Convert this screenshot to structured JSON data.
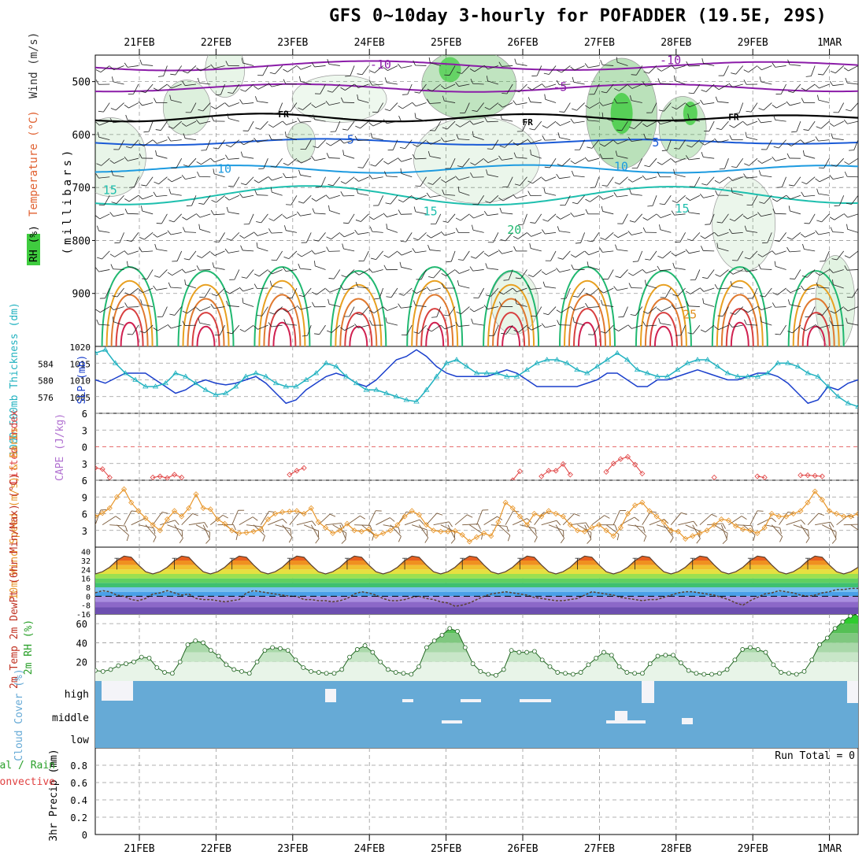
{
  "title": "GFS 0~10day 3-hourly for POFADDER (19.5E, 29S)",
  "dates": [
    "21FEB",
    "22FEB",
    "23FEB",
    "24FEB",
    "25FEB",
    "26FEB",
    "27FEB",
    "28FEB",
    "29FEB",
    "1MAR"
  ],
  "colors": {
    "cloud_blue": "#66aad6",
    "rh_green": "#3fcc3f",
    "slp_blue": "#1a3fcc",
    "thickness_cyan": "#22b2c0",
    "wind_orange": "#e8962a",
    "barb_brown": "#7a5a3a",
    "temp_magenta": "#8b1ca8",
    "lifted_red": "#e04040",
    "cape_violet": "#b070d0"
  },
  "chart_data": [
    {
      "type": "contour",
      "name": "upper-air",
      "ylabel_parts": [
        "RH (%)",
        "Temperature (°C)",
        "Wind (m/s)"
      ],
      "ylabel_units": "(millibars)",
      "yticks": [
        500,
        600,
        700,
        800,
        900
      ],
      "ylim": [
        1000,
        450
      ],
      "isotherm_labels": [
        {
          "text": "-10",
          "temp": -10,
          "x": 0.36,
          "p": 468
        },
        {
          "text": "-5",
          "temp": -5,
          "x": 0.6,
          "p": 510
        },
        {
          "text": "-10",
          "temp": -10,
          "x": 0.74,
          "p": 460
        },
        {
          "text": "FR",
          "temp": 0,
          "x": 0.24,
          "p": 560
        },
        {
          "text": "FR",
          "temp": 0,
          "x": 0.56,
          "p": 575
        },
        {
          "text": "FR",
          "temp": 0,
          "x": 0.83,
          "p": 565
        },
        {
          "text": "5",
          "temp": 5,
          "x": 0.33,
          "p": 610
        },
        {
          "text": "5",
          "temp": 5,
          "x": 0.73,
          "p": 615
        },
        {
          "text": "10",
          "temp": 10,
          "x": 0.16,
          "p": 665
        },
        {
          "text": "10",
          "temp": 10,
          "x": 0.68,
          "p": 660
        },
        {
          "text": "15",
          "temp": 15,
          "x": 0.01,
          "p": 705
        },
        {
          "text": "15",
          "temp": 15,
          "x": 0.43,
          "p": 745
        },
        {
          "text": "15",
          "temp": 15,
          "x": 0.76,
          "p": 740
        },
        {
          "text": "20",
          "temp": 20,
          "x": 0.54,
          "p": 780
        },
        {
          "text": "25",
          "temp": 25,
          "x": 0.77,
          "p": 940
        }
      ]
    },
    {
      "type": "line",
      "name": "slp-thickness",
      "ylabel_left": "1000-500mb Thickness (dm)",
      "ylabel_right": "SLP (mb)",
      "yticks_left": [
        576,
        580,
        584
      ],
      "yticks_right": [
        1005,
        1010,
        1015,
        1020
      ],
      "ylim_right": [
        1000,
        1020
      ],
      "series": [
        {
          "name": "SLP",
          "values": [
            1010,
            1009,
            1010.5,
            1012,
            1012,
            1012,
            1010,
            1008,
            1006,
            1007,
            1009,
            1010,
            1009,
            1008.5,
            1009,
            1010,
            1011,
            1009,
            1006,
            1003,
            1004,
            1007,
            1009,
            1011,
            1012,
            1011,
            1009,
            1008,
            1010,
            1013,
            1016,
            1017,
            1019,
            1017,
            1014,
            1012,
            1011,
            1011,
            1011,
            1011,
            1012,
            1013,
            1012,
            1010,
            1008,
            1008,
            1008,
            1008,
            1008,
            1009,
            1010,
            1012,
            1012,
            1010,
            1008,
            1008,
            1010,
            1010,
            1011,
            1012,
            1013,
            1012,
            1011,
            1010,
            1010,
            1011,
            1012,
            1012,
            1011,
            1009,
            1006,
            1003,
            1004,
            1008,
            1007,
            1009,
            1010
          ]
        },
        {
          "name": "Thickness",
          "values": [
            1018,
            1019,
            1015,
            1012,
            1010,
            1008,
            1008,
            1009,
            1012,
            1011,
            1009,
            1007,
            1005.5,
            1006,
            1008,
            1011,
            1012,
            1011,
            1009,
            1008,
            1008,
            1010,
            1012,
            1015,
            1014,
            1011,
            1009,
            1007,
            1007,
            1006,
            1005,
            1004,
            1003.5,
            1007,
            1011,
            1015,
            1016,
            1014,
            1012,
            1012,
            1012,
            1011,
            1011,
            1013,
            1015,
            1016,
            1016,
            1015,
            1013,
            1012,
            1014,
            1016,
            1018,
            1016,
            1013,
            1012,
            1011,
            1011,
            1013,
            1015,
            1016,
            1016,
            1014,
            1012,
            1011,
            1011,
            1011,
            1012,
            1015,
            1015,
            1014,
            1012,
            1011,
            1008,
            1005,
            1003,
            1002
          ]
        }
      ]
    },
    {
      "type": "line",
      "name": "lifted-cape",
      "ylabel_left": "Lifted Index",
      "ylabel_right": "CAPE (J/kg)",
      "yticks": [
        -6,
        -3,
        0,
        3,
        6
      ],
      "yticks_label": [
        "6",
        "3",
        "0",
        "3",
        "6"
      ],
      "ylim": [
        -6,
        6
      ],
      "series": [
        {
          "name": "Lifted Index",
          "segments": [
            {
              "from": 0,
              "values": [
                -3.8,
                -4.0,
                -5.5
              ]
            },
            {
              "from": 8,
              "values": [
                -5.5,
                -5.3,
                -5.6,
                -5.0,
                -5.5
              ]
            },
            {
              "from": 27,
              "values": [
                -5.0,
                -4.3,
                -3.8
              ]
            },
            {
              "from": 58,
              "values": [
                -6,
                -4.4
              ]
            },
            {
              "from": 62,
              "values": [
                -5.3,
                -4.3,
                -4.3,
                -3.1,
                -5.0
              ]
            },
            {
              "from": 71,
              "values": [
                -4.5,
                -3.0,
                -2.2,
                -1.8,
                -3.2,
                -4.8
              ]
            },
            {
              "from": 86,
              "values": [
                -5.5
              ]
            },
            {
              "from": 92,
              "values": [
                -5.3,
                -5.5
              ]
            },
            {
              "from": 98,
              "values": [
                -5.1,
                -5.1,
                -5.2,
                -5.3
              ]
            }
          ]
        }
      ]
    },
    {
      "type": "line",
      "name": "wind10m",
      "ylabel": "10m Wind Speed (m/s) & Barbs",
      "yticks": [
        3,
        6,
        9
      ],
      "ylim": [
        0,
        12
      ],
      "series": [
        {
          "name": "Speed",
          "values": [
            5.5,
            6.1,
            7.0,
            9.0,
            10.4,
            8.0,
            6.5,
            5.2,
            4.0,
            3.0,
            5.0,
            6.5,
            5.5,
            7.0,
            9.5,
            7.0,
            6.8,
            5.0,
            4.2,
            3.0,
            2.5,
            2.6,
            2.8,
            3.2,
            5.0,
            6.0,
            6.3,
            6.4,
            6.5,
            6.0,
            7.0,
            4.5,
            3.5,
            2.5,
            3.0,
            4.2,
            3.0,
            2.8,
            3.2,
            2.0,
            2.5,
            3.0,
            4.0,
            5.5,
            6.5,
            5.8,
            4.0,
            3.0,
            2.8,
            2.8,
            2.9,
            2.2,
            1.0,
            1.8,
            2.5,
            2.0,
            4.5,
            8.0,
            7.0,
            5.5,
            4.0,
            6.0,
            5.5,
            6.5,
            6.0,
            5.5,
            4.0,
            3.0,
            2.8,
            3.5,
            4.0,
            3.0,
            2.0,
            3.5,
            6.0,
            7.5,
            8.0,
            6.5,
            5.5,
            4.5,
            3.0,
            2.8,
            1.5,
            2.0,
            2.5,
            3.0,
            4.0,
            5.0,
            4.8,
            3.8,
            3.2,
            3.0,
            2.5,
            3.5,
            6.0,
            5.5,
            5.5,
            6.0,
            6.5,
            8.0,
            10.0,
            8.5,
            6.5,
            6.0,
            5.5,
            5.5,
            6.0
          ]
        }
      ]
    },
    {
      "type": "area",
      "name": "temp2m",
      "ylabel": "2m Temp 2m DewPt (6hr Min/Max) (°C)",
      "yticks": [
        -16,
        -8,
        0,
        8,
        16,
        24,
        32,
        40
      ],
      "yticks_label": [
        "-16",
        "-8",
        "0",
        "8",
        "16",
        "24",
        "32",
        "40"
      ],
      "ylim": [
        -16,
        44
      ],
      "series": [
        {
          "name": "Temp",
          "cycle": [
            20,
            22,
            26,
            32,
            36,
            35,
            28,
            22
          ]
        },
        {
          "name": "DewPt",
          "values": [
            3,
            5,
            4,
            1,
            0,
            -3,
            -4,
            -2,
            2,
            3,
            5,
            3,
            1,
            2,
            -2,
            -3,
            -3,
            -4,
            -5,
            -4,
            -3,
            3,
            5,
            4,
            3,
            2,
            1,
            0,
            0,
            -3,
            -3,
            -4,
            -4,
            -5,
            -4,
            -2,
            2,
            4,
            3,
            1,
            -2,
            -4,
            -4,
            -3,
            -1,
            0,
            -2,
            -3,
            -5,
            -6,
            -9,
            -8,
            -6,
            -3,
            0,
            2,
            3,
            4,
            3,
            2,
            1,
            -1,
            -2,
            -3,
            -4,
            -4,
            -3,
            -2,
            1,
            4,
            3,
            2,
            1,
            -1,
            -2,
            -3,
            -4,
            -3,
            -3,
            -1,
            1,
            3,
            4,
            4,
            3,
            2,
            1,
            -1,
            -3,
            -6,
            -8,
            -4,
            -1,
            2,
            3,
            5,
            4,
            3,
            1,
            0,
            1,
            3,
            4,
            6,
            6,
            7,
            7
          ]
        }
      ]
    },
    {
      "type": "area",
      "name": "rh2m",
      "ylabel": "2m RH (%)",
      "yticks": [
        20,
        40,
        60
      ],
      "ylim": [
        0,
        70
      ],
      "series": [
        {
          "name": "RH",
          "values": [
            11,
            10,
            12,
            16,
            18,
            20,
            25,
            24,
            14,
            9,
            8,
            20,
            38,
            42,
            40,
            32,
            26,
            17,
            12,
            10,
            8,
            20,
            32,
            35,
            34,
            32,
            22,
            14,
            10,
            9,
            8,
            8,
            12,
            25,
            33,
            37,
            30,
            20,
            12,
            9,
            8,
            7,
            15,
            35,
            42,
            48,
            55,
            52,
            35,
            18,
            10,
            7,
            6,
            12,
            32,
            30,
            30,
            31,
            22,
            15,
            9,
            8,
            7,
            9,
            17,
            24,
            30,
            27,
            15,
            9,
            8,
            8,
            18,
            26,
            27,
            27,
            19,
            11,
            8,
            7,
            7,
            8,
            12,
            22,
            33,
            35,
            33,
            30,
            17,
            9,
            8,
            7,
            10,
            22,
            38,
            45,
            55,
            62,
            68,
            70
          ]
        }
      ]
    },
    {
      "type": "bar",
      "name": "cloud-cover",
      "ylabel": "Cloud Cover (%)",
      "levels": [
        "high",
        "middle",
        "low"
      ]
    },
    {
      "type": "bar",
      "name": "precip",
      "ylabel_main": "3hr Precip (mm)",
      "ylabel_tot": "Total / Rain",
      "ylabel_conv": "Convective",
      "yticks": [
        0,
        0.2,
        0.4,
        0.6,
        0.8
      ],
      "yticks_label": [
        "0",
        "0.2",
        "0.4",
        "0.6",
        "0.8"
      ],
      "ylim": [
        0,
        1
      ],
      "annotation": "Run Total = 0"
    }
  ]
}
